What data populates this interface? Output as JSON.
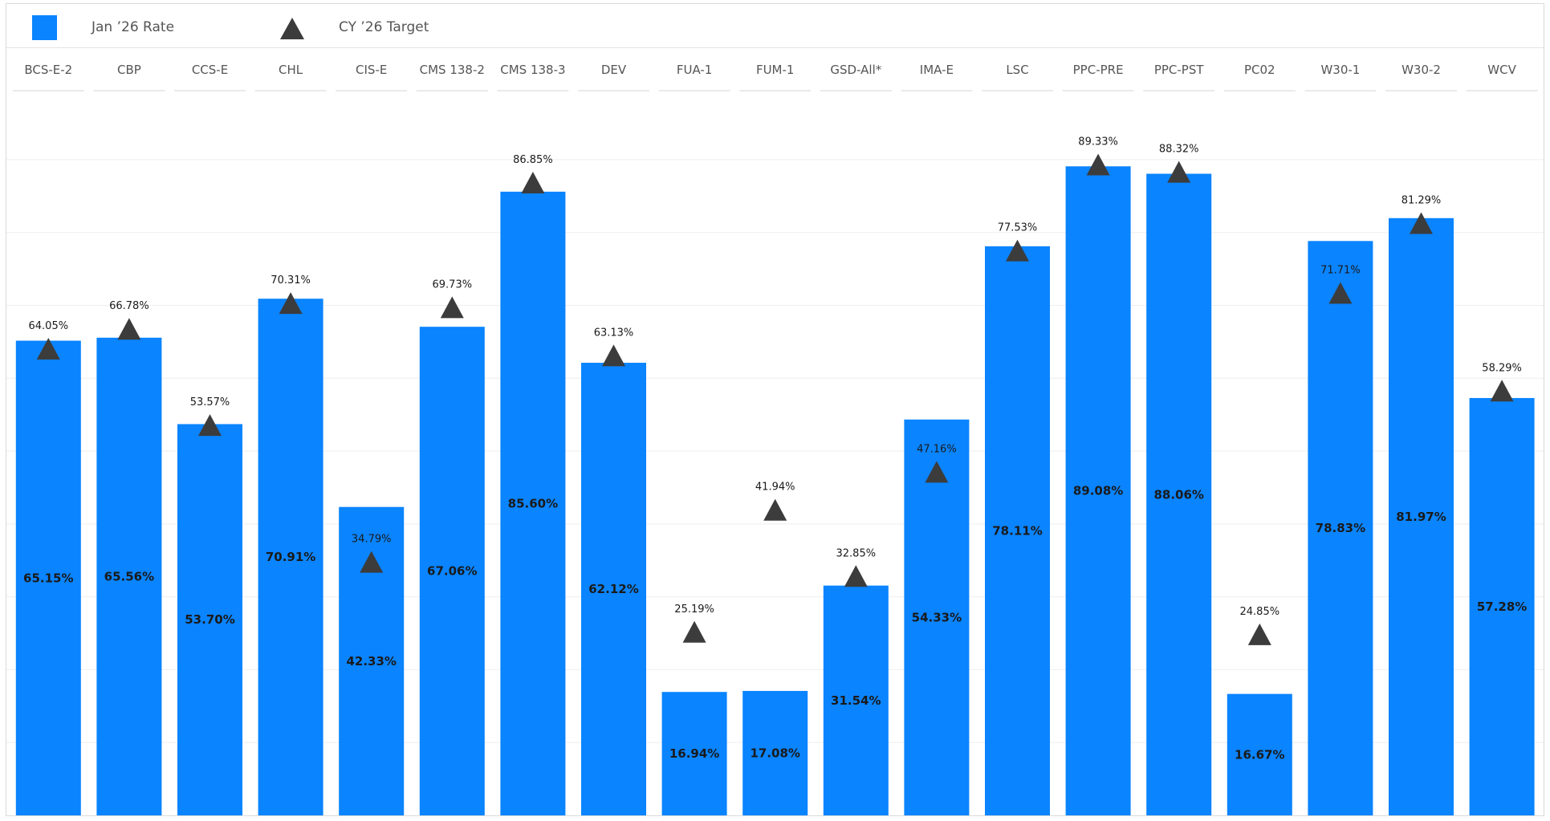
{
  "colors": {
    "bar": "#0a84ff",
    "target": "#3c3c3c",
    "grid": "#eeeeee"
  },
  "legend": {
    "items": [
      {
        "label": "Jan ’26 Rate",
        "icon": "square-swatch-icon"
      },
      {
        "label": "CY ’26 Target",
        "icon": "triangle-marker-icon"
      }
    ]
  },
  "chart_data": {
    "type": "bar",
    "title": "",
    "xlabel": "",
    "ylabel": "",
    "ylim": [
      0,
      100
    ],
    "grid": true,
    "legend_position": "top-left",
    "categories": [
      "BCS-E-2",
      "CBP",
      "CCS-E",
      "CHL",
      "CIS-E",
      "CMS 138-2",
      "CMS 138-3",
      "DEV",
      "FUA-1",
      "FUM-1",
      "GSD-All*",
      "IMA-E",
      "LSC",
      "PPC-PRE",
      "PPC-PST",
      "PC02",
      "W30-1",
      "W30-2",
      "WCV"
    ],
    "series": [
      {
        "name": "Jan ’26 Rate",
        "mark": "bar",
        "values": [
          65.15,
          65.56,
          53.7,
          70.91,
          42.33,
          67.06,
          85.6,
          62.12,
          16.94,
          17.08,
          31.54,
          54.33,
          78.11,
          89.08,
          88.06,
          16.67,
          78.83,
          81.97,
          57.28
        ],
        "labels": [
          "65.15%",
          "65.56%",
          "53.70%",
          "70.91%",
          "42.33%",
          "67.06%",
          "85.60%",
          "62.12%",
          "16.94%",
          "17.08%",
          "31.54%",
          "54.33%",
          "78.11%",
          "89.08%",
          "88.06%",
          "16.67%",
          "78.83%",
          "81.97%",
          "57.28%"
        ]
      },
      {
        "name": "CY ’26 Target",
        "mark": "triangle",
        "values": [
          64.05,
          66.78,
          53.57,
          70.31,
          34.79,
          69.73,
          86.85,
          63.13,
          25.19,
          41.94,
          32.85,
          47.16,
          77.53,
          89.33,
          88.32,
          24.85,
          71.71,
          81.29,
          58.29
        ],
        "labels": [
          "64.05%",
          "66.78%",
          "53.57%",
          "70.31%",
          "34.79%",
          "69.73%",
          "86.85%",
          "63.13%",
          "25.19%",
          "41.94%",
          "32.85%",
          "47.16%",
          "77.53%",
          "89.33%",
          "88.32%",
          "24.85%",
          "71.71%",
          "81.29%",
          "58.29%"
        ]
      }
    ]
  }
}
